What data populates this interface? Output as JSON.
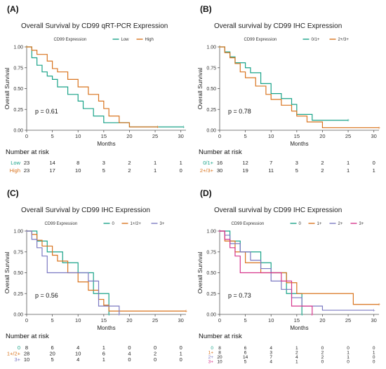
{
  "figure": {
    "axis_color": "#555555",
    "censor_mark": "+"
  },
  "chart_data": [
    {
      "type": "line",
      "panel_label": "(A)",
      "title": "Overall Survival by CD99 qRT-PCR Expression",
      "legend_title": "CD99 Expression",
      "legend_position": "top",
      "xlabel": "Months",
      "ylabel": "Overall Survival",
      "xlim": [
        0,
        31
      ],
      "ylim": [
        0,
        1
      ],
      "xticks": [
        0,
        5,
        10,
        15,
        20,
        25,
        30
      ],
      "yticks": [
        0,
        0.25,
        0.5,
        0.75,
        1
      ],
      "ytick_labels": [
        "0.00",
        "0.25",
        "0.50",
        "0.75",
        "1.00"
      ],
      "pvalue": "p = 0.61",
      "risk_title": "Number at risk",
      "risk_times": [
        0,
        5,
        10,
        15,
        20,
        25,
        30
      ],
      "series": [
        {
          "name": "Low",
          "color": "#1aa389",
          "risk": [
            23,
            14,
            8,
            3,
            2,
            1,
            1
          ],
          "times": [
            0,
            1,
            2,
            3,
            4,
            5,
            6,
            8,
            10,
            11,
            13,
            15,
            20,
            30.5
          ],
          "surv": [
            1.0,
            0.87,
            0.78,
            0.7,
            0.65,
            0.61,
            0.52,
            0.43,
            0.35,
            0.26,
            0.17,
            0.09,
            0.04,
            0.04
          ]
        },
        {
          "name": "High",
          "color": "#d9741f",
          "risk": [
            23,
            17,
            10,
            5,
            2,
            1,
            0
          ],
          "times": [
            0,
            1,
            2,
            4,
            5,
            6,
            8,
            10,
            12,
            14,
            15,
            16,
            18,
            20,
            25.5
          ],
          "surv": [
            1.0,
            0.96,
            0.91,
            0.83,
            0.74,
            0.7,
            0.61,
            0.52,
            0.43,
            0.35,
            0.26,
            0.17,
            0.09,
            0.04,
            0.04
          ]
        }
      ]
    },
    {
      "type": "line",
      "panel_label": "(B)",
      "title": "Overall survival by CD99 IHC Expression",
      "legend_title": "CD99 Expression",
      "legend_position": "top",
      "xlabel": "Months",
      "ylabel": "Overall Survival",
      "xlim": [
        0,
        31
      ],
      "ylim": [
        0,
        1
      ],
      "xticks": [
        0,
        5,
        10,
        15,
        20,
        25,
        30
      ],
      "yticks": [
        0,
        0.25,
        0.5,
        0.75,
        1
      ],
      "ytick_labels": [
        "0.00",
        "0.25",
        "0.50",
        "0.75",
        "1.00"
      ],
      "pvalue": "p = 0.78",
      "risk_title": "Number at risk",
      "risk_times": [
        0,
        5,
        10,
        15,
        20,
        25,
        30
      ],
      "series": [
        {
          "name": "0/1+",
          "color": "#1aa389",
          "risk": [
            16,
            12,
            7,
            3,
            2,
            1,
            0
          ],
          "times": [
            0,
            1,
            2,
            3,
            5,
            6,
            8,
            10,
            12,
            14,
            15,
            18,
            25
          ],
          "surv": [
            1.0,
            0.94,
            0.88,
            0.81,
            0.75,
            0.69,
            0.56,
            0.44,
            0.38,
            0.31,
            0.19,
            0.12,
            0.12
          ]
        },
        {
          "name": "2+/3+",
          "color": "#d9741f",
          "risk": [
            30,
            19,
            11,
            5,
            2,
            1,
            1
          ],
          "times": [
            0,
            1,
            2,
            3,
            4,
            5,
            7,
            9,
            10,
            12,
            14,
            15,
            17,
            20,
            31
          ],
          "surv": [
            1.0,
            0.93,
            0.87,
            0.8,
            0.7,
            0.63,
            0.53,
            0.43,
            0.37,
            0.3,
            0.23,
            0.17,
            0.1,
            0.03,
            0.03
          ]
        }
      ]
    },
    {
      "type": "line",
      "panel_label": "(C)",
      "title": "Overall Survival by CD99 IHC Expression",
      "legend_title": "CD99 Expression",
      "legend_position": "top",
      "xlabel": "Months",
      "ylabel": "Overall Survival",
      "xlim": [
        0,
        31
      ],
      "ylim": [
        0,
        1
      ],
      "xticks": [
        0,
        5,
        10,
        15,
        20,
        25,
        30
      ],
      "yticks": [
        0,
        0.25,
        0.5,
        0.75,
        1
      ],
      "ytick_labels": [
        "0.00",
        "0.25",
        "0.50",
        "0.75",
        "1.00"
      ],
      "pvalue": "p = 0.56",
      "risk_title": "Number at risk",
      "risk_times": [
        0,
        5,
        10,
        15,
        20,
        25,
        30
      ],
      "series": [
        {
          "name": "0",
          "color": "#1aa389",
          "risk": [
            8,
            6,
            4,
            1,
            0,
            0,
            0
          ],
          "times": [
            0,
            2,
            4,
            7,
            10,
            13,
            16
          ],
          "surv": [
            1.0,
            0.88,
            0.75,
            0.62,
            0.5,
            0.25,
            0.0
          ]
        },
        {
          "name": "1+/2+",
          "color": "#d9741f",
          "risk": [
            28,
            20,
            10,
            6,
            4,
            2,
            1
          ],
          "times": [
            0,
            1,
            2,
            3,
            5,
            6,
            8,
            10,
            12,
            14,
            15,
            16,
            31
          ],
          "surv": [
            1.0,
            0.96,
            0.89,
            0.82,
            0.71,
            0.64,
            0.5,
            0.39,
            0.29,
            0.18,
            0.11,
            0.04,
            0.04
          ]
        },
        {
          "name": "3+",
          "color": "#7b79c2",
          "risk": [
            10,
            5,
            4,
            1,
            0,
            0,
            0
          ],
          "times": [
            0,
            1,
            2,
            3,
            4,
            12,
            14,
            18
          ],
          "surv": [
            1.0,
            0.9,
            0.8,
            0.7,
            0.5,
            0.4,
            0.1,
            0.0
          ]
        }
      ]
    },
    {
      "type": "line",
      "panel_label": "(D)",
      "title": "Overall survival by CD99 IHC Expression",
      "legend_title": "CD99 Expression",
      "legend_position": "top",
      "xlabel": "Months",
      "ylabel": "Overall Survival",
      "xlim": [
        0,
        31
      ],
      "ylim": [
        0,
        1
      ],
      "xticks": [
        0,
        5,
        10,
        15,
        20,
        25,
        30
      ],
      "yticks": [
        0,
        0.25,
        0.5,
        0.75,
        1
      ],
      "ytick_labels": [
        "0.00",
        "0.25",
        "0.50",
        "0.75",
        "1.00"
      ],
      "pvalue": "p = 0.73",
      "risk_title": "Number at risk",
      "risk_times": [
        0,
        5,
        10,
        15,
        20,
        25,
        30
      ],
      "series": [
        {
          "name": "0",
          "color": "#1aa389",
          "risk": [
            8,
            6,
            4,
            1,
            0,
            0,
            0
          ],
          "times": [
            0,
            2,
            4,
            8,
            10,
            13,
            16
          ],
          "surv": [
            1.0,
            0.88,
            0.75,
            0.62,
            0.5,
            0.25,
            0.0
          ]
        },
        {
          "name": "1+",
          "color": "#d9741f",
          "risk": [
            8,
            6,
            3,
            2,
            2,
            1,
            1
          ],
          "times": [
            0,
            1,
            3,
            5,
            8,
            13,
            15,
            26,
            31
          ],
          "surv": [
            1.0,
            0.88,
            0.75,
            0.62,
            0.5,
            0.38,
            0.25,
            0.12,
            0.12
          ]
        },
        {
          "name": "2+",
          "color": "#7b79c2",
          "risk": [
            20,
            14,
            7,
            4,
            2,
            1,
            0
          ],
          "times": [
            0,
            1,
            2,
            4,
            6,
            8,
            10,
            12,
            14,
            16,
            20,
            30
          ],
          "surv": [
            1.0,
            0.95,
            0.85,
            0.75,
            0.65,
            0.55,
            0.4,
            0.3,
            0.2,
            0.1,
            0.05,
            0.05
          ]
        },
        {
          "name": "3+",
          "color": "#d6358c",
          "risk": [
            10,
            5,
            4,
            1,
            0,
            0,
            0
          ],
          "times": [
            0,
            1,
            2,
            3,
            4,
            12,
            14,
            18
          ],
          "surv": [
            1.0,
            0.9,
            0.8,
            0.7,
            0.5,
            0.4,
            0.1,
            0.0
          ]
        }
      ]
    }
  ]
}
